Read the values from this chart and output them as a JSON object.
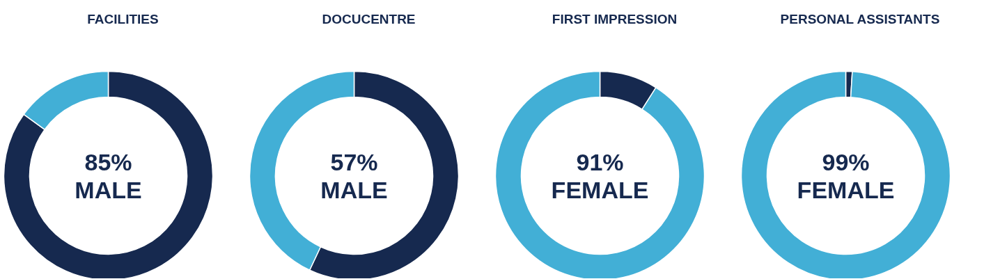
{
  "chart_data": [
    {
      "type": "donut",
      "title": "FACILITIES",
      "categories": [
        null,
        null
      ],
      "values": [
        85,
        15
      ],
      "colors": [
        "#16294f",
        "#42afd6"
      ],
      "annotations": [
        "85%",
        "MALE"
      ]
    },
    {
      "type": "donut",
      "title": "DOCUCENTRE",
      "categories": [
        null,
        null
      ],
      "values": [
        57,
        43
      ],
      "colors": [
        "#16294f",
        "#42afd6"
      ],
      "annotations": [
        "57%",
        "MALE"
      ]
    },
    {
      "type": "donut",
      "title": "FIRST IMPRESSION",
      "categories": [
        null,
        null
      ],
      "values": [
        9,
        91
      ],
      "colors": [
        "#16294f",
        "#42afd6"
      ],
      "annotations": [
        "91%",
        "FEMALE"
      ]
    },
    {
      "type": "donut",
      "title": "PERSONAL ASSISTANTS",
      "categories": [
        null,
        null
      ],
      "values": [
        1,
        99
      ],
      "colors": [
        "#16294f",
        "#42afd6"
      ],
      "annotations": [
        "99%",
        "FEMALE"
      ]
    }
  ]
}
